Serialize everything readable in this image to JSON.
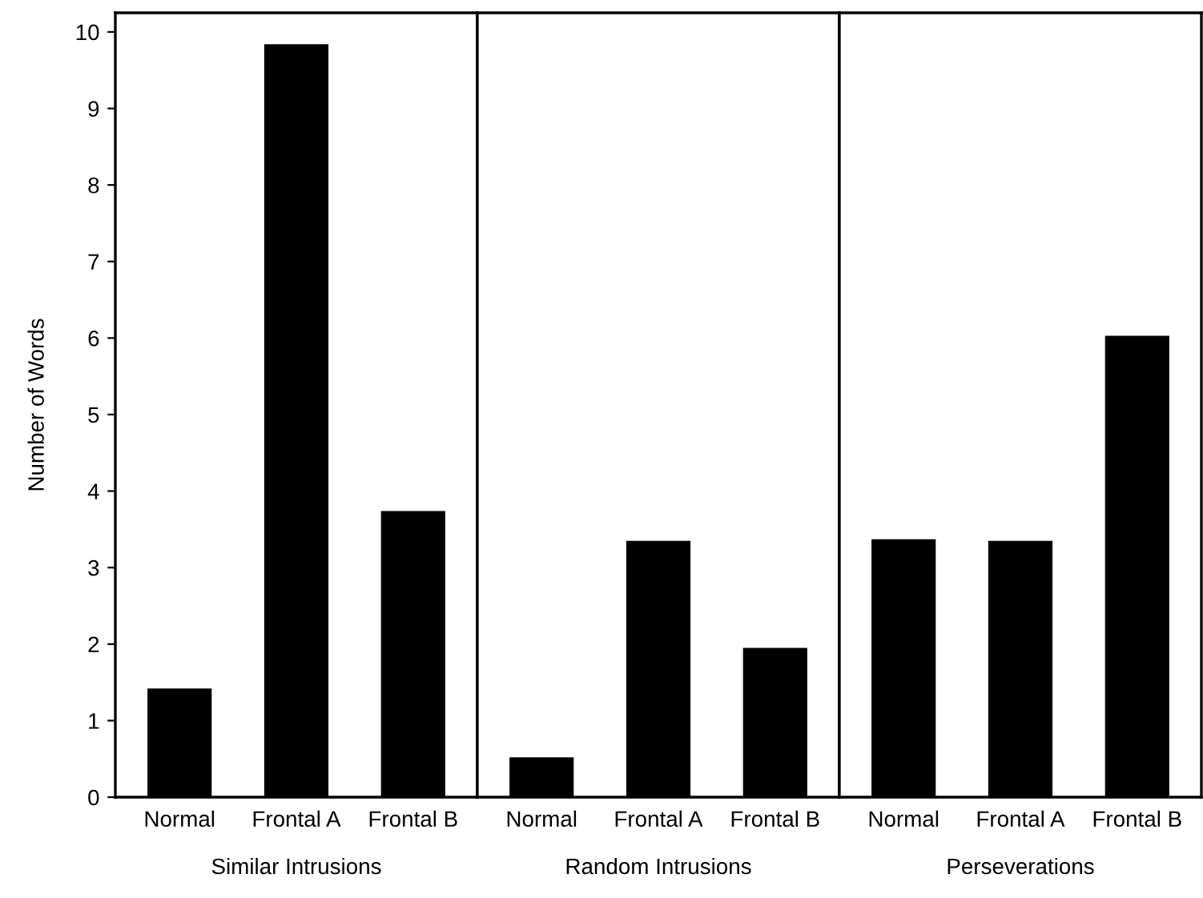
{
  "chart_data": [
    {
      "type": "bar",
      "xlabel": "Similar Intrusions",
      "ylabel": "Number of Words",
      "categories": [
        "Normal",
        "Frontal A",
        "Frontal B"
      ],
      "values": [
        1.42,
        9.84,
        3.74
      ],
      "color": "#000000",
      "ylim": [
        0,
        10.25
      ],
      "yticks": [
        0,
        1,
        2,
        3,
        4,
        5,
        6,
        7,
        8,
        9,
        10
      ],
      "grid": false
    },
    {
      "type": "bar",
      "xlabel": "Random Intrusions",
      "categories": [
        "Normal",
        "Frontal A",
        "Frontal B"
      ],
      "values": [
        0.52,
        3.35,
        1.95
      ],
      "color": "#000000",
      "ylim": [
        0,
        10.25
      ],
      "yticks": [
        0,
        1,
        2,
        3,
        4,
        5,
        6,
        7,
        8,
        9,
        10
      ],
      "tick_labels": "x",
      "grid": false
    },
    {
      "type": "bar",
      "xlabel": "Perseverations",
      "categories": [
        "Normal",
        "Frontal A",
        "Frontal B"
      ],
      "values": [
        3.37,
        3.35,
        6.03
      ],
      "color": "#000000",
      "ylim": [
        0,
        10.25
      ],
      "yticks": [
        0,
        1,
        2,
        3,
        4,
        5,
        6,
        7,
        8,
        9,
        10
      ],
      "tick_labels": "x",
      "grid": false
    }
  ]
}
